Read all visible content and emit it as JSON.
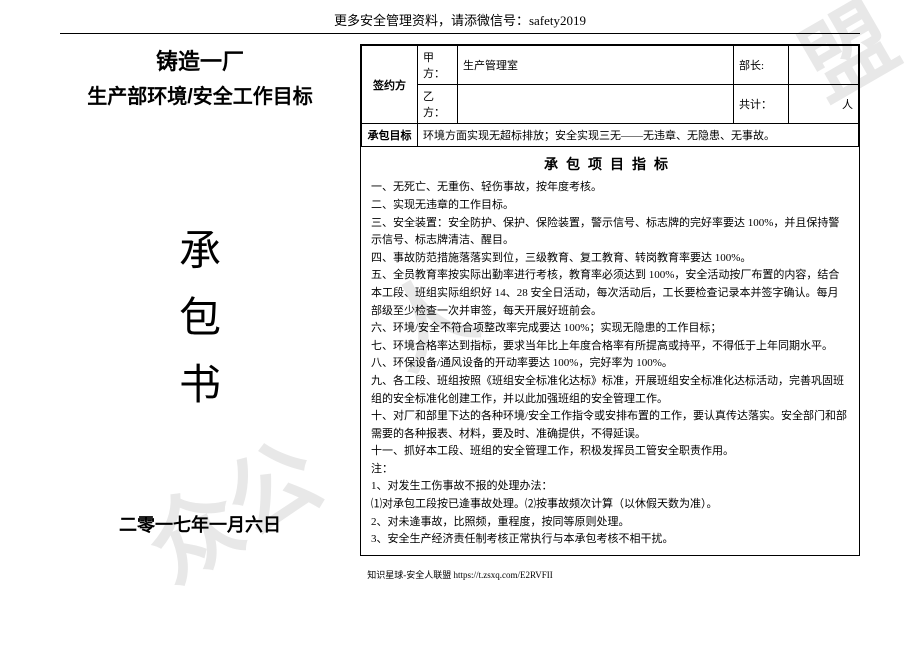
{
  "watermark": {
    "char1": "盟",
    "char2": "人",
    "char3": "众公"
  },
  "header_note": "更多安全管理资料，请添微信号：safety2019",
  "left": {
    "title_line1": "铸造一厂",
    "title_line2": "生产部环境/安全工作目标",
    "calligraphy": {
      "c1": "承",
      "c2": "包",
      "c3": "书"
    },
    "date": "二零一七年一月六日"
  },
  "table": {
    "sign_label": "签约方",
    "jia_label": "甲方：",
    "jia_value": "生产管理室",
    "buchang_label": "部长:",
    "yi_label": "乙方：",
    "gongji_label": "共计：",
    "ren_label": "人",
    "contract_goal_label": "承包目标",
    "contract_goal_value": "环境方面实现无超标排放；安全实现三无——无违章、无隐患、无事故。"
  },
  "targets": {
    "title": "承包项目指标",
    "items": [
      "一、无死亡、无重伤、轻伤事故，按年度考核。",
      "二、实现无违章的工作目标。",
      "三、安全装置：安全防护、保护、保险装置，警示信号、标志牌的完好率要达 100%，并且保持警示信号、标志牌清洁、醒目。",
      "四、事故防范措施落落实到位，三级教育、复工教育、转岗教育率要达 100%。",
      "五、全员教育率按实际出勤率进行考核，教育率必须达到 100%，安全活动按厂布置的内容，结合本工段、班组实际组织好 14、28 安全日活动，每次活动后，工长要检查记录本并签字确认。每月部级至少检查一次并审签，每天开展好班前会。",
      "六、环境/安全不符合项整改率完成要达 100%；实现无隐患的工作目标；",
      "七、环境合格率达到指标，要求当年比上年度合格率有所提高或持平，不得低于上年同期水平。",
      "八、环保设备/通风设备的开动率要达 100%，完好率为 100%。",
      "九、各工段、班组按照《班组安全标准化达标》标准，开展班组安全标准化达标活动，完善巩固班组的安全标准化创建工作，并以此加强班组的安全管理工作。",
      "十、对厂和部里下达的各种环境/安全工作指令或安排布置的工作，要认真传达落实。安全部门和部需要的各种报表、材料，要及时、准确提供，不得延误。",
      "十一、抓好本工段、班组的安全管理工作，积极发挥员工管安全职责作用。",
      "注：",
      "1、对发生工伤事故不报的处理办法：",
      "⑴对承包工段按已逄事故处理。⑵按事故频次计算（以休假天数为准）。",
      "2、对未逄事故，比照频，重程度，按同等原则处理。",
      "3、安全生产经济责任制考核正常执行与本承包考核不相干扰。"
    ]
  },
  "footer_note": "知识星球-安全人联盟 https://t.zsxq.com/E2RVFII",
  "colors": {
    "text": "#000000",
    "watermark": "#e8e8e8",
    "background": "#ffffff",
    "border": "#000000"
  }
}
